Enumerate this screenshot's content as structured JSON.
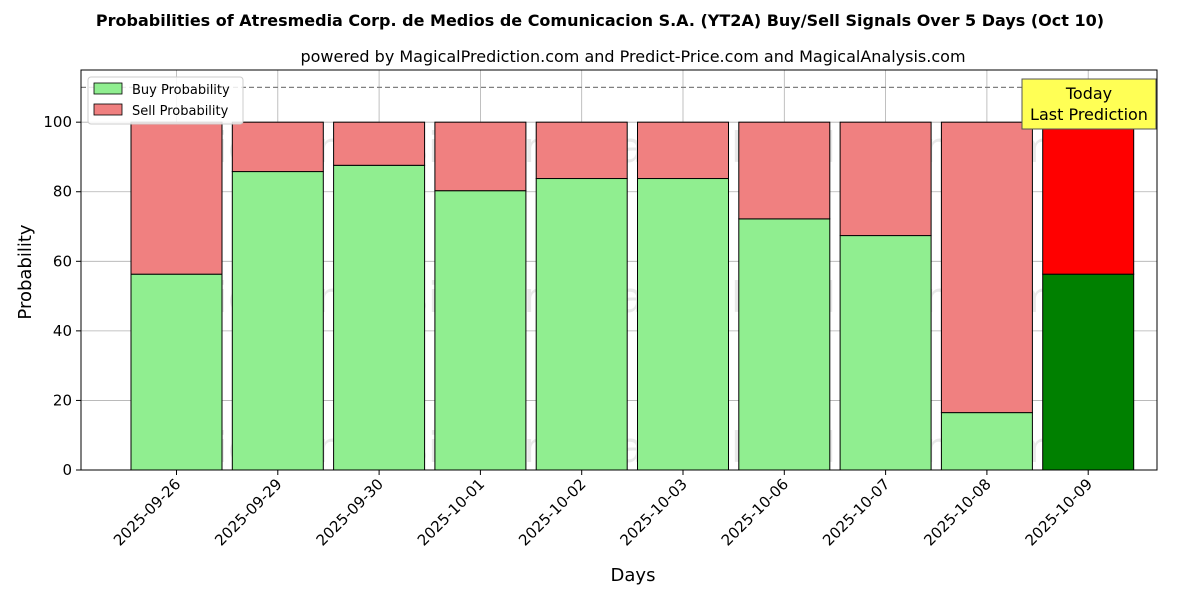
{
  "colors": {
    "buy": "#90EE90",
    "sell": "#F08080",
    "buy_today": "#008000",
    "sell_today": "#FF0000",
    "annotation_bg": "#FFFF55",
    "reference_line": "#808080"
  },
  "chart_data": {
    "type": "bar",
    "stacked": true,
    "title": "Probabilities of Atresmedia Corp. de Medios de Comunicacion S.A. (YT2A) Buy/Sell Signals Over 5 Days (Oct 10)",
    "subtitle": "powered by MagicalPrediction.com and Predict-Price.com and MagicalAnalysis.com",
    "xlabel": "Days",
    "ylabel": "Probability",
    "ylim": [
      0,
      115
    ],
    "yticks": [
      0,
      20,
      40,
      60,
      80,
      100
    ],
    "grid": true,
    "legend_position": "top-left",
    "categories": [
      "2025-09-26",
      "2025-09-29",
      "2025-09-30",
      "2025-10-01",
      "2025-10-02",
      "2025-10-03",
      "2025-10-06",
      "2025-10-07",
      "2025-10-08",
      "2025-10-09"
    ],
    "series": [
      {
        "name": "Buy Probability",
        "values": [
          56.3,
          85.8,
          87.6,
          80.3,
          83.8,
          83.8,
          72.2,
          67.4,
          16.5,
          56.3
        ]
      },
      {
        "name": "Sell Probability",
        "values": [
          43.7,
          14.2,
          12.4,
          19.7,
          16.2,
          16.2,
          27.8,
          32.6,
          83.5,
          43.7
        ]
      }
    ],
    "highlight_index": 9,
    "reference_line": 110,
    "annotation": {
      "line1": "Today",
      "line2": "Last Prediction"
    },
    "watermarks": [
      "MagicalAnalysis.com",
      "MagicalPrediction.com",
      "MagicalAnalysis.com",
      "MagicalPrediction.com",
      "MagicalAnalysis.com",
      "MagicalPrediction.com"
    ]
  }
}
